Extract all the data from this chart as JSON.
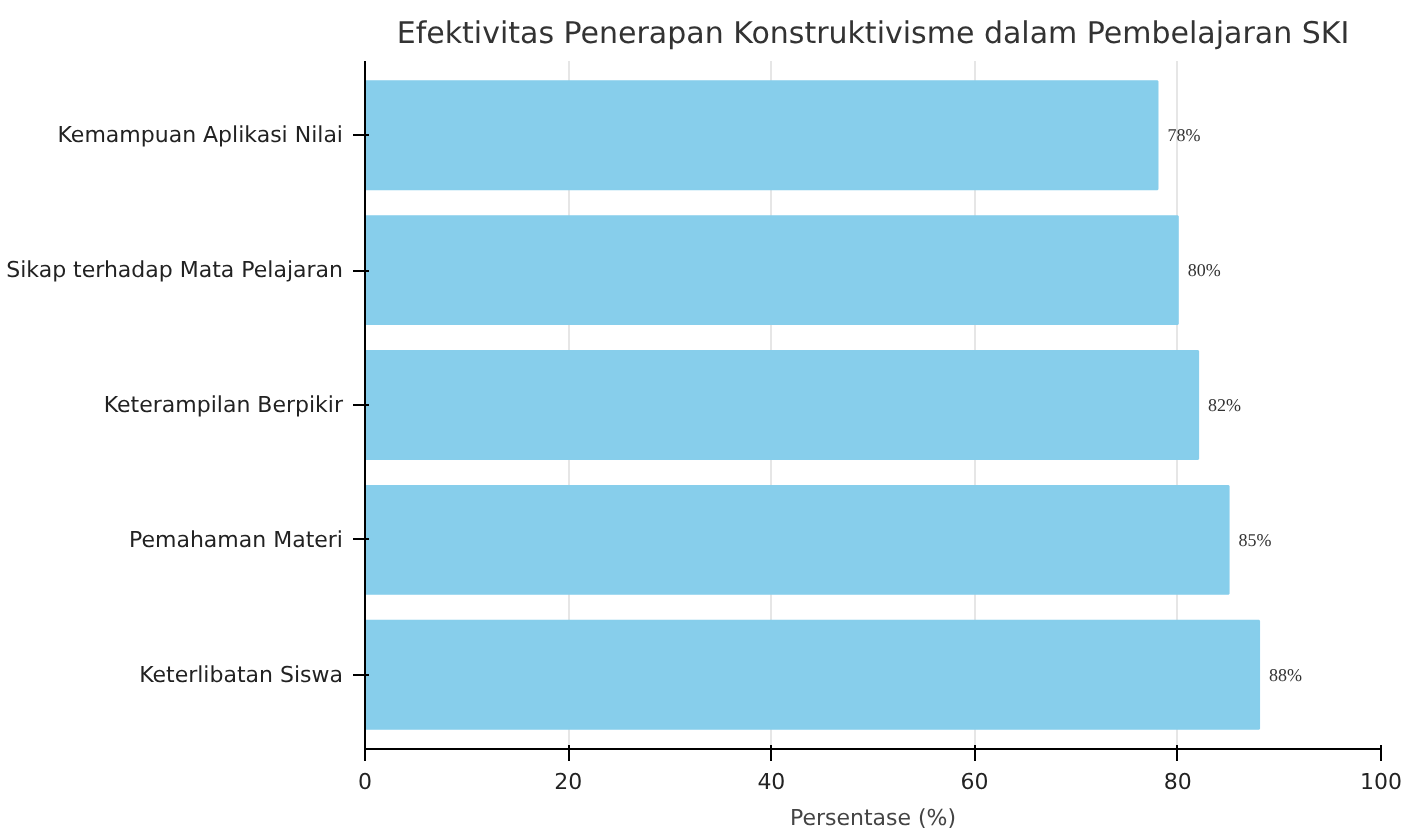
{
  "chart_data": {
    "type": "bar",
    "orientation": "horizontal",
    "title": "Efektivitas Penerapan Konstruktivisme dalam Pembelajaran SKI",
    "xlabel": "Persentase (%)",
    "categories": [
      "Kemampuan Aplikasi Nilai",
      "Sikap terhadap Mata Pelajaran",
      "Keterampilan Berpikir",
      "Pemahaman Materi",
      "Keterlibatan Siswa"
    ],
    "values": [
      78,
      80,
      82,
      85,
      88
    ],
    "color": "#87ceeb",
    "value_labels": [
      "78%",
      "80%",
      "82%",
      "85%",
      "88%"
    ],
    "xlim": [
      0,
      100
    ],
    "xticks": [
      0,
      20,
      40,
      60,
      80,
      100
    ],
    "grid": "x"
  }
}
